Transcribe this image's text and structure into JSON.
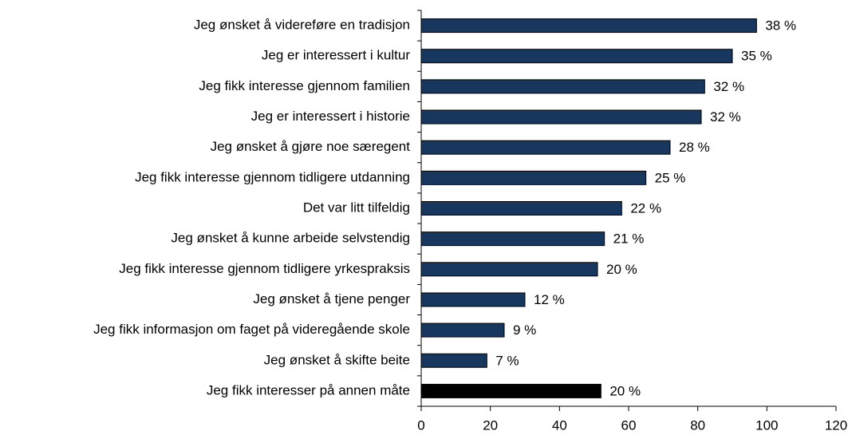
{
  "chart_data": {
    "type": "hbar",
    "categories": [
      "Jeg ønsket å videreføre en tradisjon",
      "Jeg er interessert i kultur",
      "Jeg fikk interesse gjennom familien",
      "Jeg er interessert i historie",
      "Jeg ønsket å gjøre noe særegent",
      "Jeg fikk interesse gjennom tidligere utdanning",
      "Det var litt tilfeldig",
      "Jeg ønsket å kunne arbeide selvstendig",
      "Jeg fikk interesse gjennom tidligere yrkespraksis",
      "Jeg ønsket å tjene penger",
      "Jeg fikk informasjon om faget på videregående skole",
      "Jeg ønsket å skifte beite",
      "Jeg fikk interesser på annen måte"
    ],
    "values": [
      97,
      90,
      82,
      81,
      72,
      65,
      58,
      53,
      51,
      30,
      24,
      19,
      52
    ],
    "value_labels": [
      "38 %",
      "35 %",
      "32 %",
      "32 %",
      "28 %",
      "25 %",
      "22 %",
      "21 %",
      "20 %",
      "12 %",
      "9 %",
      "7 %",
      "20 %"
    ],
    "colors": [
      "#17375e",
      "#17375e",
      "#17375e",
      "#17375e",
      "#17375e",
      "#17375e",
      "#17375e",
      "#17375e",
      "#17375e",
      "#17375e",
      "#17375e",
      "#17375e",
      "#000000"
    ],
    "xlim": [
      0,
      120
    ],
    "xticks": [
      0,
      20,
      40,
      60,
      80,
      100,
      120
    ]
  }
}
